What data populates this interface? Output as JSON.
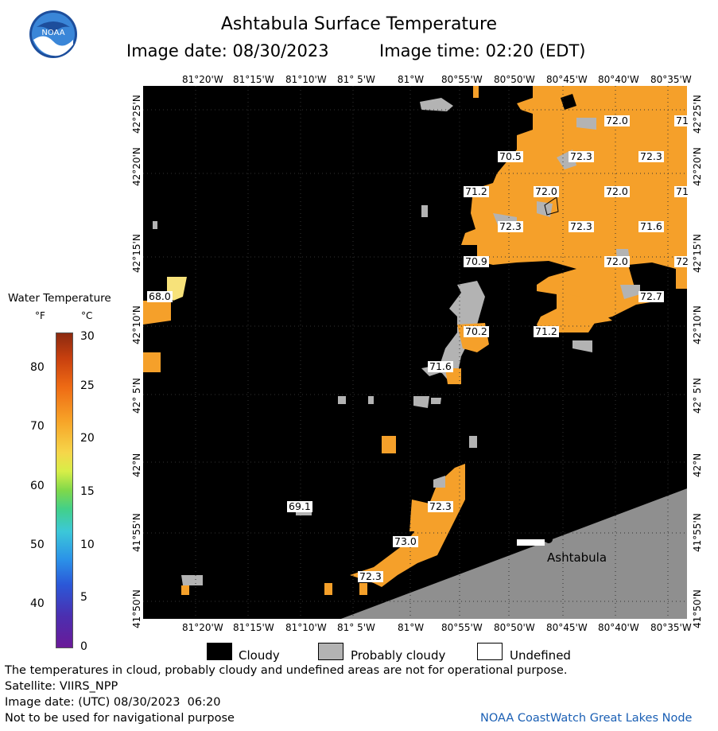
{
  "header": {
    "title": "Ashtabula Surface Temperature",
    "image_date": "Image date: 08/30/2023",
    "image_time": "Image time: 02:20 (EDT)"
  },
  "longitude_labels": [
    "81°20'W",
    "81°15'W",
    "81°10'W",
    "81° 5'W",
    "81°W",
    "80°55'W",
    "80°50'W",
    "80°45'W",
    "80°40'W",
    "80°35'W"
  ],
  "latitude_labels_left": [
    "42°25'N",
    "42°20'N",
    "42°15'N",
    "42°10'N",
    "42° 5'N",
    "42°N",
    "41°55'N",
    "41°50'N"
  ],
  "latitude_labels_right": [
    "42°25'N",
    "42°20'N",
    "42°15'N",
    "42°10'N",
    "42° 5'N",
    "42°N",
    "41°55'N",
    "41°50'N"
  ],
  "temperature_labels": [
    {
      "v": "72.0"
    },
    {
      "v": "71"
    },
    {
      "v": "70.5"
    },
    {
      "v": "72.3"
    },
    {
      "v": "72.3"
    },
    {
      "v": "71.2"
    },
    {
      "v": "72.0"
    },
    {
      "v": "72.0"
    },
    {
      "v": "71"
    },
    {
      "v": "72.3"
    },
    {
      "v": "72.3"
    },
    {
      "v": "71.6"
    },
    {
      "v": "70.9"
    },
    {
      "v": "72.0"
    },
    {
      "v": "72"
    },
    {
      "v": "68.0"
    },
    {
      "v": "72.7"
    },
    {
      "v": "70.2"
    },
    {
      "v": "71.2"
    },
    {
      "v": "71.6"
    },
    {
      "v": "69.1"
    },
    {
      "v": "72.3"
    },
    {
      "v": "73.0"
    },
    {
      "v": "72.3"
    }
  ],
  "city_label": "Ashtabula",
  "colorbar": {
    "title": "Water Temperature",
    "unit_f": "°F",
    "unit_c": "°C",
    "fahrenheit_ticks": [
      "80",
      "70",
      "60",
      "50",
      "40"
    ],
    "celsius_ticks": [
      "30",
      "25",
      "20",
      "15",
      "10",
      "5",
      "0"
    ]
  },
  "legend": {
    "cloudy": "Cloudy",
    "probably_cloudy": "Probably cloudy",
    "undefined": "Undefined"
  },
  "footer": {
    "note": "The temperatures in cloud, probably cloudy and undefined areas are not for operational purpose.",
    "satellite": "Satellite: VIIRS_NPP",
    "utc_date": "Image date: (UTC) 08/30/2023  06:20",
    "nav": "Not to be used for navigational purpose",
    "credit": "NOAA CoastWatch Great Lakes Node"
  },
  "logo": {
    "text": "NOAA"
  },
  "colors": {
    "water_warm": "#f7a428",
    "cloud": "#000000",
    "probably_cloudy": "#b3b3b3",
    "land": "#8f8f8f",
    "credit": "#1a5fb4"
  }
}
